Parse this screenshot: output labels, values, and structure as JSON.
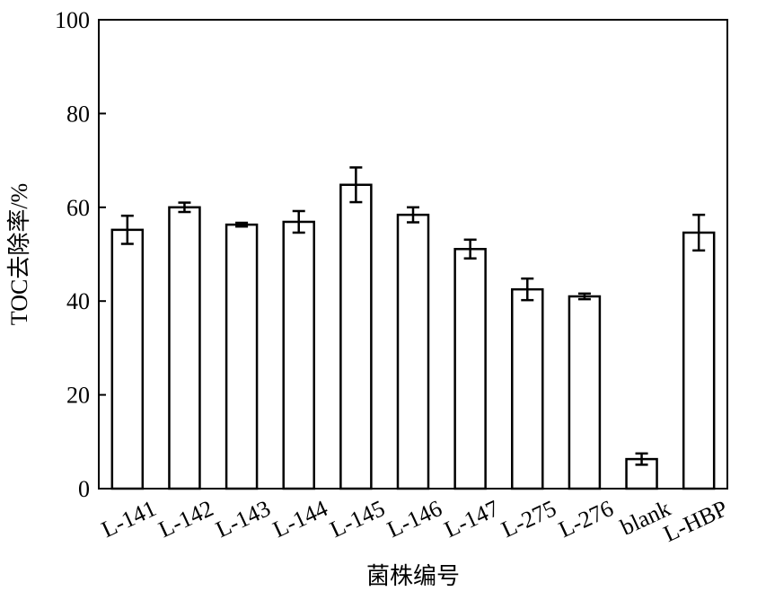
{
  "chart_data": {
    "type": "bar",
    "x_label": "菌株编号",
    "y_label": "TOC去除率/%",
    "categories": [
      "L-141",
      "L-142",
      "L-143",
      "L-144",
      "L-145",
      "L-146",
      "L-147",
      "L-275",
      "L-276",
      "blank",
      "L-HBP"
    ],
    "values": [
      55.2,
      60.0,
      56.3,
      56.9,
      64.8,
      58.4,
      51.1,
      42.5,
      41.0,
      6.3,
      54.6
    ],
    "errors": [
      3.0,
      1.0,
      0.4,
      2.3,
      3.7,
      1.6,
      2.0,
      2.3,
      0.6,
      1.2,
      3.8
    ],
    "color": "#ffffff",
    "ylim": [
      0,
      100
    ],
    "yticks": [
      0,
      20,
      40,
      60,
      80,
      100
    ],
    "grid": false
  }
}
